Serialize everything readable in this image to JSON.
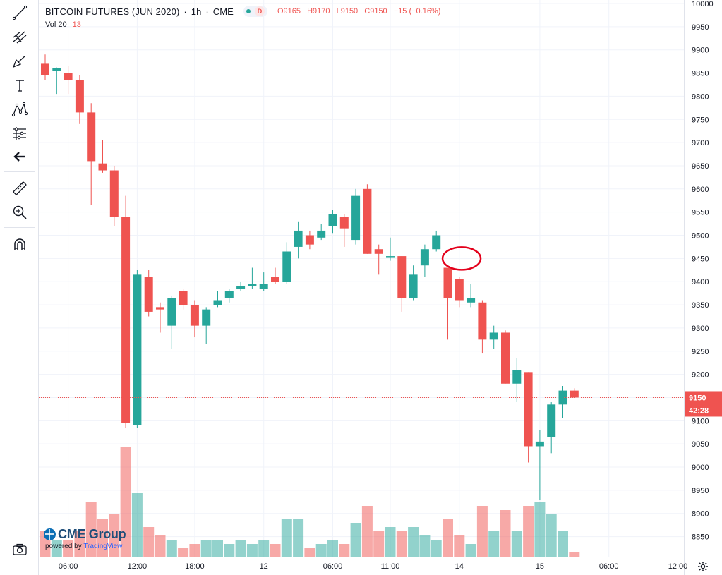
{
  "legend": {
    "symbol": "BITCOIN FUTURES (JUN 2020)",
    "sep1": "·",
    "interval": "1h",
    "sep2": "·",
    "exchange": "CME",
    "badge": "D",
    "o_label": "O",
    "o_value": "9165",
    "h_label": "H",
    "h_value": "9170",
    "l_label": "L",
    "l_value": "9150",
    "c_label": "C",
    "c_value": "9150",
    "change": "−15 (−0.16%)"
  },
  "volume_legend": {
    "label": "Vol 20",
    "value": "13"
  },
  "price_axis": {
    "current_price": "9150",
    "countdown": "42:28"
  },
  "watermark": {
    "brand": "CME Group",
    "powered_by": "powered by",
    "platform": "TradingView"
  },
  "toolbar": {
    "tools": [
      "trend-line-icon",
      "pitchfork-icon",
      "brush-icon",
      "text-icon",
      "pattern-icon",
      "forecast-icon",
      "back-arrow-icon",
      "ruler-icon",
      "zoom-in-icon",
      "magnet-icon"
    ],
    "bottom": "camera-icon"
  },
  "colors": {
    "up": "#26a69a",
    "down": "#ef5350",
    "vol_up": "#26a69a",
    "vol_down": "#ef5350",
    "grid": "#f0f3fa",
    "axis_text": "#131722",
    "annotation": "#e3001b"
  },
  "chart_data": {
    "type": "candlestick",
    "title": "BITCOIN FUTURES (JUN 2020)",
    "interval": "1h",
    "ylim": [
      8825,
      10000
    ],
    "y_ticks": [
      8850,
      8900,
      8950,
      9000,
      9050,
      9100,
      9150,
      9200,
      9250,
      9300,
      9350,
      9400,
      9450,
      9500,
      9550,
      9600,
      9650,
      9700,
      9750,
      9800,
      9850,
      9900,
      9950,
      10000
    ],
    "x_ticks": [
      {
        "label": "06:00",
        "index": 2
      },
      {
        "label": "12:00",
        "index": 8
      },
      {
        "label": "18:00",
        "index": 13
      },
      {
        "label": "12",
        "index": 19
      },
      {
        "label": "06:00",
        "index": 25
      },
      {
        "label": "11:00",
        "index": 30
      },
      {
        "label": "14",
        "index": 36
      },
      {
        "label": "15",
        "index": 43
      },
      {
        "label": "06:00",
        "index": 49
      },
      {
        "label": "12:00",
        "index": 55
      }
    ],
    "current_price": 9150,
    "volume_max": 30,
    "annotation": {
      "type": "ellipse",
      "index": 36.2,
      "price": 9450
    },
    "candles": [
      {
        "o": 9870,
        "h": 9890,
        "l": 9835,
        "c": 9845,
        "v": 6
      },
      {
        "o": 9855,
        "h": 9862,
        "l": 9805,
        "c": 9860,
        "v": 4
      },
      {
        "o": 9850,
        "h": 9865,
        "l": 9805,
        "c": 9835,
        "v": 4
      },
      {
        "o": 9835,
        "h": 9845,
        "l": 9740,
        "c": 9765,
        "v": 6
      },
      {
        "o": 9765,
        "h": 9785,
        "l": 9565,
        "c": 9660,
        "v": 13
      },
      {
        "o": 9655,
        "h": 9705,
        "l": 9635,
        "c": 9640,
        "v": 9
      },
      {
        "o": 9640,
        "h": 9650,
        "l": 9520,
        "c": 9540,
        "v": 10
      },
      {
        "o": 9540,
        "h": 9585,
        "l": 9085,
        "c": 9095,
        "v": 26
      },
      {
        "o": 9090,
        "h": 9425,
        "l": 9085,
        "c": 9415,
        "v": 15
      },
      {
        "o": 9410,
        "h": 9425,
        "l": 9325,
        "c": 9335,
        "v": 7
      },
      {
        "o": 9345,
        "h": 9355,
        "l": 9290,
        "c": 9340,
        "v": 5
      },
      {
        "o": 9305,
        "h": 9370,
        "l": 9255,
        "c": 9365,
        "v": 4
      },
      {
        "o": 9380,
        "h": 9385,
        "l": 9340,
        "c": 9350,
        "v": 2
      },
      {
        "o": 9350,
        "h": 9360,
        "l": 9280,
        "c": 9305,
        "v": 3
      },
      {
        "o": 9305,
        "h": 9345,
        "l": 9265,
        "c": 9340,
        "v": 4
      },
      {
        "o": 9350,
        "h": 9380,
        "l": 9345,
        "c": 9360,
        "v": 4
      },
      {
        "o": 9365,
        "h": 9385,
        "l": 9355,
        "c": 9380,
        "v": 3
      },
      {
        "o": 9385,
        "h": 9400,
        "l": 9380,
        "c": 9390,
        "v": 4
      },
      {
        "o": 9390,
        "h": 9430,
        "l": 9385,
        "c": 9395,
        "v": 3
      },
      {
        "o": 9385,
        "h": 9420,
        "l": 9380,
        "c": 9395,
        "v": 4
      },
      {
        "o": 9410,
        "h": 9430,
        "l": 9395,
        "c": 9400,
        "v": 3
      },
      {
        "o": 9400,
        "h": 9485,
        "l": 9395,
        "c": 9465,
        "v": 9
      },
      {
        "o": 9475,
        "h": 9530,
        "l": 9450,
        "c": 9510,
        "v": 9
      },
      {
        "o": 9500,
        "h": 9510,
        "l": 9470,
        "c": 9480,
        "v": 2
      },
      {
        "o": 9495,
        "h": 9525,
        "l": 9490,
        "c": 9510,
        "v": 3
      },
      {
        "o": 9520,
        "h": 9555,
        "l": 9505,
        "c": 9545,
        "v": 4
      },
      {
        "o": 9540,
        "h": 9545,
        "l": 9475,
        "c": 9515,
        "v": 3
      },
      {
        "o": 9490,
        "h": 9600,
        "l": 9480,
        "c": 9585,
        "v": 8
      },
      {
        "o": 9600,
        "h": 9610,
        "l": 9460,
        "c": 9460,
        "v": 12
      },
      {
        "o": 9470,
        "h": 9480,
        "l": 9415,
        "c": 9460,
        "v": 6
      },
      {
        "o": 9455,
        "h": 9495,
        "l": 9445,
        "c": 9455,
        "v": 7
      },
      {
        "o": 9455,
        "h": 9455,
        "l": 9335,
        "c": 9365,
        "v": 6
      },
      {
        "o": 9365,
        "h": 9435,
        "l": 9360,
        "c": 9415,
        "v": 7
      },
      {
        "o": 9435,
        "h": 9480,
        "l": 9410,
        "c": 9470,
        "v": 5
      },
      {
        "o": 9470,
        "h": 9510,
        "l": 9465,
        "c": 9500,
        "v": 4
      },
      {
        "o": 9430,
        "h": 9430,
        "l": 9275,
        "c": 9365,
        "v": 9
      },
      {
        "o": 9405,
        "h": 9410,
        "l": 9345,
        "c": 9360,
        "v": 5
      },
      {
        "o": 9355,
        "h": 9395,
        "l": 9345,
        "c": 9365,
        "v": 3
      },
      {
        "o": 9355,
        "h": 9360,
        "l": 9245,
        "c": 9275,
        "v": 12
      },
      {
        "o": 9275,
        "h": 9305,
        "l": 9255,
        "c": 9290,
        "v": 6
      },
      {
        "o": 9290,
        "h": 9295,
        "l": 9180,
        "c": 9180,
        "v": 11
      },
      {
        "o": 9180,
        "h": 9235,
        "l": 9140,
        "c": 9210,
        "v": 6
      },
      {
        "o": 9205,
        "h": 9205,
        "l": 9010,
        "c": 9045,
        "v": 12
      },
      {
        "o": 9045,
        "h": 9080,
        "l": 8930,
        "c": 9055,
        "v": 13
      },
      {
        "o": 9065,
        "h": 9140,
        "l": 9030,
        "c": 9135,
        "v": 10
      },
      {
        "o": 9135,
        "h": 9175,
        "l": 9105,
        "c": 9165,
        "v": 6
      },
      {
        "o": 9165,
        "h": 9170,
        "l": 9150,
        "c": 9150,
        "v": 1
      }
    ]
  }
}
